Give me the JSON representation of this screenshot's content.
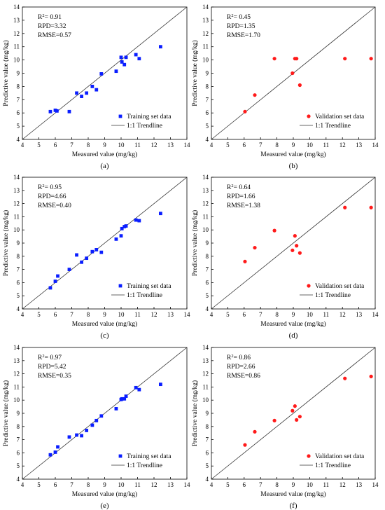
{
  "chart_data": [
    {
      "type": "scatter",
      "caption": "(a)",
      "xlabel": "Measured value (mg/kg)",
      "ylabel": "Predictive value (mg/kg)",
      "xlim": [
        4,
        14
      ],
      "ylim": [
        4,
        14
      ],
      "xticks": [
        "4",
        "5",
        "6",
        "7",
        "8",
        "9",
        "10",
        "11",
        "12",
        "13",
        "14"
      ],
      "yticks": [
        "4",
        "5",
        "6",
        "7",
        "8",
        "9",
        "10",
        "11",
        "12",
        "13",
        "14"
      ],
      "stats": {
        "r2_prefix": "R",
        "r2_sup": "2",
        "r2_value": "= 0.91",
        "rpd": "RPD=3.32",
        "rmse": "RMSE=0.57"
      },
      "legend": {
        "position": "bottom-right",
        "points_label": "Training set data",
        "line_label": "1:1 Trendline"
      },
      "marker": "square",
      "color": "#0a1eff",
      "points": [
        [
          5.7,
          6.1
        ],
        [
          6.0,
          6.2
        ],
        [
          6.1,
          6.15
        ],
        [
          6.85,
          6.1
        ],
        [
          7.3,
          7.5
        ],
        [
          7.6,
          7.25
        ],
        [
          7.9,
          7.5
        ],
        [
          8.25,
          8.0
        ],
        [
          8.5,
          7.75
        ],
        [
          8.8,
          8.95
        ],
        [
          9.7,
          9.15
        ],
        [
          10.0,
          10.2
        ],
        [
          10.05,
          9.85
        ],
        [
          10.2,
          9.65
        ],
        [
          10.3,
          10.2
        ],
        [
          10.9,
          10.4
        ],
        [
          11.1,
          10.1
        ],
        [
          12.4,
          11.0
        ]
      ]
    },
    {
      "type": "scatter",
      "caption": "(b)",
      "xlabel": "Measured value (mg/kg)",
      "ylabel": "Predictive value (mg/kg)",
      "xlim": [
        4,
        14
      ],
      "ylim": [
        4,
        14
      ],
      "xticks": [
        "4",
        "5",
        "6",
        "7",
        "8",
        "9",
        "10",
        "11",
        "12",
        "13",
        "14"
      ],
      "yticks": [
        "4",
        "5",
        "6",
        "7",
        "8",
        "9",
        "10",
        "11",
        "12",
        "13",
        "14"
      ],
      "stats": {
        "r2_prefix": "R",
        "r2_sup": "2",
        "r2_value": "= 0.45",
        "rpd": "RPD=1.35",
        "rmse": "RMSE=1.70"
      },
      "legend": {
        "position": "bottom-right",
        "points_label": "Validation set data",
        "line_label": "1:1 Trendline"
      },
      "marker": "circle",
      "color": "#ff1a1a",
      "points": [
        [
          6.05,
          6.1
        ],
        [
          6.65,
          7.35
        ],
        [
          7.85,
          10.1
        ],
        [
          8.95,
          9.0
        ],
        [
          9.1,
          10.1
        ],
        [
          9.2,
          10.1
        ],
        [
          9.4,
          8.1
        ],
        [
          12.15,
          10.1
        ],
        [
          13.75,
          10.1
        ]
      ]
    },
    {
      "type": "scatter",
      "caption": "(c)",
      "xlabel": "Measured value (mg/kg)",
      "ylabel": "Predictive value (mg/kg)",
      "xlim": [
        4,
        14
      ],
      "ylim": [
        4,
        14
      ],
      "xticks": [
        "4",
        "5",
        "6",
        "7",
        "8",
        "9",
        "10",
        "11",
        "12",
        "13",
        "14"
      ],
      "yticks": [
        "4",
        "5",
        "6",
        "7",
        "8",
        "9",
        "10",
        "11",
        "12",
        "13",
        "14"
      ],
      "stats": {
        "r2_prefix": "R",
        "r2_sup": "2",
        "r2_value": "= 0.95",
        "rpd": "RPD=4.66",
        "rmse": "RMSE=0.40"
      },
      "legend": {
        "position": "bottom-right",
        "points_label": "Training set data",
        "line_label": "1:1 Trendline"
      },
      "marker": "square",
      "color": "#0a1eff",
      "points": [
        [
          5.7,
          5.6
        ],
        [
          6.0,
          6.1
        ],
        [
          6.15,
          6.5
        ],
        [
          6.85,
          7.0
        ],
        [
          7.3,
          8.1
        ],
        [
          7.6,
          7.55
        ],
        [
          7.9,
          7.85
        ],
        [
          8.25,
          8.35
        ],
        [
          8.5,
          8.5
        ],
        [
          8.8,
          8.3
        ],
        [
          9.7,
          9.3
        ],
        [
          10.0,
          9.55
        ],
        [
          10.05,
          10.1
        ],
        [
          10.2,
          10.25
        ],
        [
          10.3,
          10.3
        ],
        [
          10.9,
          10.75
        ],
        [
          11.1,
          10.7
        ],
        [
          12.4,
          11.25
        ]
      ]
    },
    {
      "type": "scatter",
      "caption": "(d)",
      "xlabel": "Measured value (mg/kg)",
      "ylabel": "Predictive value (mg/kg)",
      "xlim": [
        4,
        14
      ],
      "ylim": [
        4,
        14
      ],
      "xticks": [
        "4",
        "5",
        "6",
        "7",
        "8",
        "9",
        "10",
        "11",
        "12",
        "13",
        "14"
      ],
      "yticks": [
        "4",
        "5",
        "6",
        "7",
        "8",
        "9",
        "10",
        "11",
        "12",
        "13",
        "14"
      ],
      "stats": {
        "r2_prefix": "R",
        "r2_sup": "2",
        "r2_value": "= 0.64",
        "rpd": "RPD=1.66",
        "rmse": "RMSE=1.38"
      },
      "legend": {
        "position": "bottom-right",
        "points_label": "Validation set data",
        "line_label": "1:1 Trendline"
      },
      "marker": "circle",
      "color": "#ff1a1a",
      "points": [
        [
          6.05,
          7.6
        ],
        [
          6.65,
          8.65
        ],
        [
          7.85,
          9.95
        ],
        [
          8.95,
          8.45
        ],
        [
          9.1,
          9.55
        ],
        [
          9.2,
          8.8
        ],
        [
          9.4,
          8.25
        ],
        [
          12.15,
          11.7
        ],
        [
          13.75,
          11.7
        ]
      ]
    },
    {
      "type": "scatter",
      "caption": "(e)",
      "xlabel": "Measured value (mg/kg)",
      "ylabel": "Predictive value (mg/kg)",
      "xlim": [
        4,
        14
      ],
      "ylim": [
        4,
        14
      ],
      "xticks": [
        "4",
        "5",
        "6",
        "7",
        "8",
        "9",
        "10",
        "11",
        "12",
        "13",
        "14"
      ],
      "yticks": [
        "4",
        "5",
        "6",
        "7",
        "8",
        "9",
        "10",
        "11",
        "12",
        "13",
        "14"
      ],
      "stats": {
        "r2_prefix": "R",
        "r2_sup": "2",
        "r2_value": "= 0.97",
        "rpd": "RPD=5.42",
        "rmse": "RMSE=0.35"
      },
      "legend": {
        "position": "bottom-right",
        "points_label": "Training set data",
        "line_label": "1:1 Trendline"
      },
      "marker": "square",
      "color": "#0a1eff",
      "points": [
        [
          5.7,
          5.85
        ],
        [
          6.0,
          6.05
        ],
        [
          6.15,
          6.45
        ],
        [
          6.85,
          7.2
        ],
        [
          7.3,
          7.35
        ],
        [
          7.6,
          7.3
        ],
        [
          7.9,
          7.7
        ],
        [
          8.25,
          8.1
        ],
        [
          8.5,
          8.45
        ],
        [
          8.8,
          8.8
        ],
        [
          9.7,
          9.35
        ],
        [
          10.0,
          10.05
        ],
        [
          10.05,
          10.1
        ],
        [
          10.2,
          10.1
        ],
        [
          10.3,
          10.3
        ],
        [
          10.9,
          10.95
        ],
        [
          11.1,
          10.8
        ],
        [
          12.4,
          11.2
        ]
      ]
    },
    {
      "type": "scatter",
      "caption": "(f)",
      "xlabel": "Measured value (mg/kg)",
      "ylabel": "Predictive value (mg/kg)",
      "xlim": [
        4,
        14
      ],
      "ylim": [
        4,
        14
      ],
      "xticks": [
        "4",
        "5",
        "6",
        "7",
        "8",
        "9",
        "10",
        "11",
        "12",
        "13",
        "14"
      ],
      "yticks": [
        "4",
        "5",
        "6",
        "7",
        "8",
        "9",
        "10",
        "11",
        "12",
        "13",
        "14"
      ],
      "stats": {
        "r2_prefix": "R",
        "r2_sup": "2",
        "r2_value": "= 0.86",
        "rpd": "RPD=2.66",
        "rmse": "RMSE=0.86"
      },
      "legend": {
        "position": "bottom-right",
        "points_label": "Validation set data",
        "line_label": "1:1 Trendline"
      },
      "marker": "circle",
      "color": "#ff1a1a",
      "points": [
        [
          6.05,
          6.6
        ],
        [
          6.65,
          7.6
        ],
        [
          7.85,
          8.45
        ],
        [
          8.95,
          9.2
        ],
        [
          9.1,
          9.55
        ],
        [
          9.2,
          8.5
        ],
        [
          9.4,
          8.75
        ],
        [
          12.15,
          11.65
        ],
        [
          13.75,
          11.8
        ]
      ]
    }
  ]
}
